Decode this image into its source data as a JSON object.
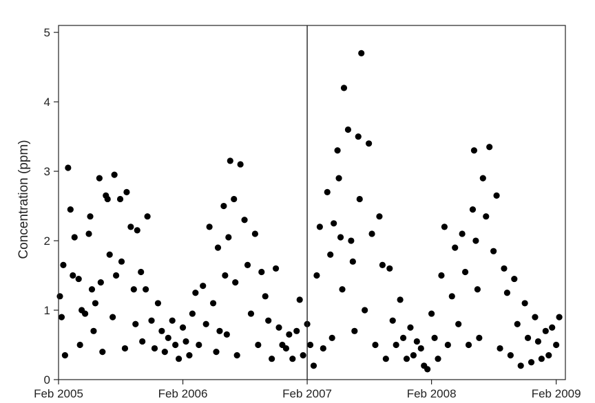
{
  "chart_data": {
    "type": "scatter",
    "title": "",
    "xlabel": "",
    "ylabel": "Concentration (ppm)",
    "xlim": [
      "2005-02-01",
      "2009-02-28"
    ],
    "ylim": [
      0,
      5.1
    ],
    "x_ticks": [
      "2005-02-01",
      "2006-02-01",
      "2007-02-01",
      "2008-02-01",
      "2009-02-01"
    ],
    "x_tick_labels": [
      "Feb 2005",
      "Feb 2006",
      "Feb 2007",
      "Feb 2008",
      "Feb 2009"
    ],
    "y_ticks": [
      0,
      1,
      2,
      3,
      4,
      5
    ],
    "y_tick_labels": [
      "0",
      "1",
      "2",
      "3",
      "4",
      "5"
    ],
    "reference_line_x": "2007-02-01",
    "grid": false,
    "legend": "none",
    "marker_color": "#000000",
    "series": [
      {
        "x": [
          "2005-02-05",
          "2005-02-10",
          "2005-02-15",
          "2005-02-20",
          "2005-03-01",
          "2005-03-08",
          "2005-03-15",
          "2005-03-20",
          "2005-04-01",
          "2005-04-05",
          "2005-04-10",
          "2005-04-20",
          "2005-05-01",
          "2005-05-05",
          "2005-05-10",
          "2005-05-15",
          "2005-05-20",
          "2005-06-01",
          "2005-06-05",
          "2005-06-10",
          "2005-06-20",
          "2005-06-25",
          "2005-07-01",
          "2005-07-10",
          "2005-07-15",
          "2005-07-20",
          "2005-08-01",
          "2005-08-05",
          "2005-08-15",
          "2005-08-20",
          "2005-09-01",
          "2005-09-10",
          "2005-09-15",
          "2005-09-20",
          "2005-10-01",
          "2005-10-05",
          "2005-10-15",
          "2005-10-20",
          "2005-11-01",
          "2005-11-10",
          "2005-11-20",
          "2005-12-01",
          "2005-12-10",
          "2005-12-20",
          "2006-01-01",
          "2006-01-10",
          "2006-01-20",
          "2006-02-01",
          "2006-02-10",
          "2006-02-20",
          "2006-03-01",
          "2006-03-10",
          "2006-03-20",
          "2006-04-01",
          "2006-04-10",
          "2006-04-20",
          "2006-05-01",
          "2006-05-10",
          "2006-05-15",
          "2006-05-20",
          "2006-06-01",
          "2006-06-05",
          "2006-06-10",
          "2006-06-15",
          "2006-06-20",
          "2006-07-01",
          "2006-07-05",
          "2006-07-10",
          "2006-07-20",
          "2006-08-01",
          "2006-08-10",
          "2006-08-20",
          "2006-09-01",
          "2006-09-10",
          "2006-09-20",
          "2006-10-01",
          "2006-10-10",
          "2006-10-20",
          "2006-11-01",
          "2006-11-10",
          "2006-11-20",
          "2006-12-01",
          "2006-12-10",
          "2006-12-20",
          "2007-01-01",
          "2007-01-10",
          "2007-01-20",
          "2007-02-01",
          "2007-02-10",
          "2007-02-20",
          "2007-03-01",
          "2007-03-10",
          "2007-03-20",
          "2007-04-01",
          "2007-04-10",
          "2007-04-15",
          "2007-04-20",
          "2007-05-01",
          "2007-05-05",
          "2007-05-10",
          "2007-05-15",
          "2007-05-20",
          "2007-06-01",
          "2007-06-10",
          "2007-06-15",
          "2007-06-20",
          "2007-07-01",
          "2007-07-05",
          "2007-07-10",
          "2007-07-20",
          "2007-08-01",
          "2007-08-10",
          "2007-08-20",
          "2007-09-01",
          "2007-09-10",
          "2007-09-20",
          "2007-10-01",
          "2007-10-10",
          "2007-10-20",
          "2007-11-01",
          "2007-11-10",
          "2007-11-20",
          "2007-12-01",
          "2007-12-10",
          "2007-12-20",
          "2008-01-01",
          "2008-01-10",
          "2008-01-20",
          "2008-02-01",
          "2008-02-10",
          "2008-02-20",
          "2008-03-01",
          "2008-03-10",
          "2008-03-20",
          "2008-04-01",
          "2008-04-10",
          "2008-04-20",
          "2008-05-01",
          "2008-05-10",
          "2008-05-20",
          "2008-06-01",
          "2008-06-05",
          "2008-06-10",
          "2008-06-15",
          "2008-06-20",
          "2008-07-01",
          "2008-07-10",
          "2008-07-20",
          "2008-08-01",
          "2008-08-10",
          "2008-08-20",
          "2008-09-01",
          "2008-09-10",
          "2008-09-20",
          "2008-10-01",
          "2008-10-10",
          "2008-10-20",
          "2008-11-01",
          "2008-11-10",
          "2008-11-20",
          "2008-12-01",
          "2008-12-10",
          "2008-12-20",
          "2009-01-01",
          "2009-01-10",
          "2009-01-20",
          "2009-02-01",
          "2009-02-10"
        ],
        "y": [
          1.2,
          0.9,
          1.65,
          0.35,
          3.05,
          2.45,
          1.5,
          2.05,
          1.45,
          0.5,
          1.0,
          0.95,
          2.1,
          2.35,
          1.3,
          0.7,
          1.1,
          2.9,
          1.4,
          0.4,
          2.65,
          2.6,
          1.8,
          0.9,
          2.95,
          1.5,
          2.6,
          1.7,
          0.45,
          2.7,
          2.2,
          1.3,
          0.8,
          2.15,
          1.55,
          0.55,
          1.3,
          2.35,
          0.85,
          0.45,
          1.1,
          0.7,
          0.4,
          0.6,
          0.85,
          0.5,
          0.3,
          0.75,
          0.55,
          0.35,
          0.95,
          1.25,
          0.5,
          1.35,
          0.8,
          2.2,
          1.1,
          0.4,
          1.9,
          0.7,
          2.5,
          1.5,
          0.65,
          2.05,
          3.15,
          2.6,
          1.4,
          0.35,
          3.1,
          2.3,
          1.65,
          0.95,
          2.1,
          0.5,
          1.55,
          1.2,
          0.85,
          0.3,
          1.6,
          0.75,
          0.5,
          0.45,
          0.65,
          0.3,
          0.7,
          1.15,
          0.35,
          0.8,
          0.5,
          0.2,
          1.5,
          2.2,
          0.45,
          2.7,
          1.8,
          0.6,
          2.25,
          3.3,
          2.9,
          2.05,
          1.3,
          4.2,
          3.6,
          2.0,
          1.7,
          0.7,
          3.5,
          2.6,
          4.7,
          1.0,
          3.4,
          2.1,
          0.5,
          2.35,
          1.65,
          0.3,
          1.6,
          0.85,
          0.5,
          1.15,
          0.6,
          0.3,
          0.75,
          0.35,
          0.55,
          0.45,
          0.2,
          0.15,
          0.95,
          0.6,
          0.3,
          1.5,
          2.2,
          0.5,
          1.2,
          1.9,
          0.8,
          2.1,
          1.55,
          0.5,
          2.45,
          3.3,
          2.0,
          1.3,
          0.6,
          2.9,
          2.35,
          3.35,
          1.85,
          2.65,
          0.45,
          1.6,
          1.25,
          0.35,
          1.45,
          0.8,
          0.2,
          1.1,
          0.6,
          0.25,
          0.9,
          0.55,
          0.3,
          0.7,
          0.35,
          0.75,
          0.5,
          0.9
        ]
      }
    ]
  }
}
